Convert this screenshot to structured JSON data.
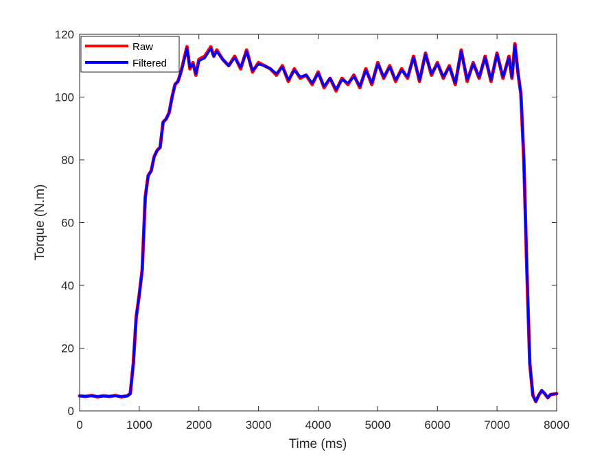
{
  "chart_data": {
    "type": "line",
    "title": "",
    "xlabel": "Time (ms)",
    "ylabel": "Torque (N.m)",
    "xlim": [
      0,
      8000
    ],
    "ylim": [
      0,
      120
    ],
    "xticks": [
      0,
      1000,
      2000,
      3000,
      4000,
      5000,
      6000,
      7000,
      8000
    ],
    "yticks": [
      0,
      20,
      40,
      60,
      80,
      100,
      120
    ],
    "grid": false,
    "legend_position": "top-left",
    "series": [
      {
        "name": "Raw",
        "color": "#ff0000",
        "x": [
          0,
          100,
          200,
          300,
          400,
          500,
          600,
          700,
          800,
          850,
          900,
          950,
          1000,
          1050,
          1100,
          1150,
          1200,
          1250,
          1300,
          1350,
          1400,
          1450,
          1500,
          1550,
          1600,
          1650,
          1700,
          1750,
          1800,
          1850,
          1900,
          1950,
          2000,
          2100,
          2200,
          2250,
          2300,
          2400,
          2500,
          2600,
          2700,
          2800,
          2900,
          3000,
          3100,
          3200,
          3300,
          3400,
          3500,
          3600,
          3700,
          3800,
          3900,
          4000,
          4100,
          4200,
          4300,
          4400,
          4500,
          4600,
          4700,
          4800,
          4900,
          5000,
          5100,
          5200,
          5300,
          5400,
          5500,
          5600,
          5700,
          5800,
          5900,
          6000,
          6100,
          6200,
          6300,
          6400,
          6500,
          6600,
          6700,
          6800,
          6900,
          7000,
          7100,
          7200,
          7250,
          7300,
          7350,
          7400,
          7450,
          7500,
          7550,
          7600,
          7650,
          7700,
          7750,
          7800,
          7850,
          7900,
          8000
        ],
        "y": [
          4.8,
          4.6,
          4.9,
          4.5,
          4.8,
          4.6,
          4.9,
          4.5,
          4.8,
          5.5,
          15,
          30,
          37,
          45,
          68,
          75,
          76.5,
          81,
          83,
          84,
          92,
          93,
          95,
          100,
          104,
          105,
          108,
          112,
          116,
          109,
          111,
          107,
          112,
          113,
          116,
          113,
          115,
          112,
          110,
          113,
          109,
          115,
          108,
          111,
          110,
          109,
          107,
          110,
          105,
          109,
          106,
          107,
          104,
          108,
          103,
          106,
          102,
          106,
          104,
          107,
          103,
          109,
          104,
          111,
          106,
          110,
          105,
          109,
          106,
          113,
          105,
          114,
          107,
          111,
          106,
          110,
          104,
          115,
          105,
          111,
          106,
          113,
          105,
          114,
          106,
          113,
          106,
          117,
          108,
          101,
          80,
          45,
          15,
          5,
          3,
          5,
          6.5,
          5.5,
          4.2,
          5.2,
          5.5
        ]
      },
      {
        "name": "Filtered",
        "color": "#0000ff",
        "x": [
          0,
          100,
          200,
          300,
          400,
          500,
          600,
          700,
          800,
          850,
          900,
          950,
          1000,
          1050,
          1100,
          1150,
          1200,
          1250,
          1300,
          1350,
          1400,
          1450,
          1500,
          1550,
          1600,
          1650,
          1700,
          1750,
          1800,
          1850,
          1900,
          1950,
          2000,
          2100,
          2200,
          2250,
          2300,
          2400,
          2500,
          2600,
          2700,
          2800,
          2900,
          3000,
          3100,
          3200,
          3300,
          3400,
          3500,
          3600,
          3700,
          3800,
          3900,
          4000,
          4100,
          4200,
          4300,
          4400,
          4500,
          4600,
          4700,
          4800,
          4900,
          5000,
          5100,
          5200,
          5300,
          5400,
          5500,
          5600,
          5700,
          5800,
          5900,
          6000,
          6100,
          6200,
          6300,
          6400,
          6500,
          6600,
          6700,
          6800,
          6900,
          7000,
          7100,
          7200,
          7250,
          7300,
          7350,
          7400,
          7450,
          7500,
          7550,
          7600,
          7650,
          7700,
          7750,
          7800,
          7850,
          7900,
          8000
        ],
        "y": [
          4.7,
          4.7,
          4.8,
          4.6,
          4.7,
          4.7,
          4.8,
          4.6,
          4.7,
          5.5,
          15,
          30,
          37,
          45,
          68,
          75,
          76.5,
          81,
          83,
          84,
          92,
          93,
          95,
          100,
          104,
          105,
          108,
          111.5,
          115.5,
          109.5,
          110.5,
          107.5,
          111.5,
          112.5,
          115.5,
          113,
          114.5,
          112,
          110,
          112.5,
          109.5,
          114.5,
          108.5,
          110.5,
          110,
          109,
          107.5,
          109.5,
          105.5,
          108.5,
          106.5,
          107,
          104.5,
          107.5,
          103.5,
          106,
          102.5,
          105.5,
          104.5,
          106.5,
          103.5,
          108.5,
          104.5,
          110.5,
          106.5,
          109.5,
          105.5,
          108.5,
          106.5,
          112.5,
          105.5,
          113.5,
          107.5,
          110.5,
          106.5,
          109.5,
          104.5,
          114.5,
          105.5,
          110.5,
          106.5,
          112.5,
          105.5,
          113.5,
          106.5,
          112.5,
          106.5,
          116.5,
          108,
          101,
          80,
          45,
          15,
          5,
          3,
          5,
          6.5,
          5.5,
          4.3,
          5.2,
          5.5
        ]
      }
    ]
  }
}
